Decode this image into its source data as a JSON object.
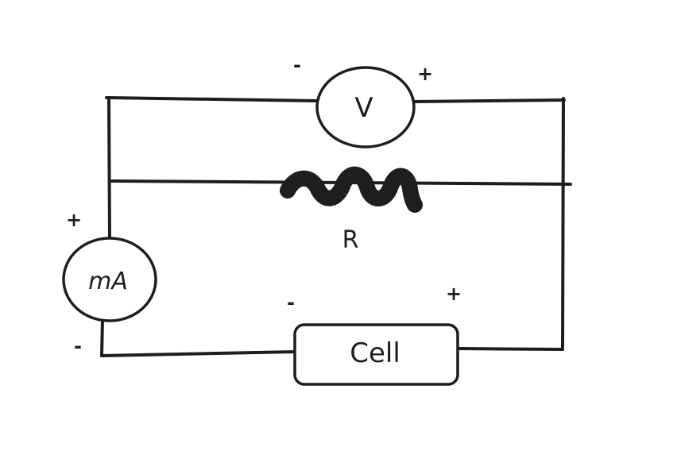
{
  "diagram": {
    "voltmeter_label": "V",
    "ammeter_label": "mA",
    "resistor_label": "R",
    "cell_label": "Cell",
    "voltmeter_neg": "-",
    "voltmeter_pos": "+",
    "ammeter_pos": "+",
    "ammeter_neg": "-",
    "cell_neg": "-",
    "cell_pos": "+"
  }
}
